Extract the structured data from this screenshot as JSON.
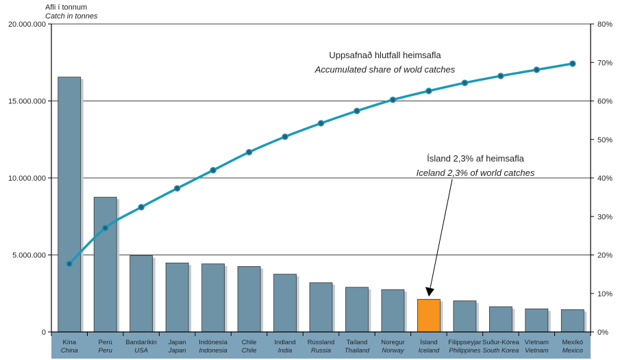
{
  "chart_data": {
    "type": "bar",
    "ylabel_is": "Afli í tonnum",
    "ylabel_en": "Catch in tonnes",
    "categories": [
      {
        "is": "Kína",
        "en": "China"
      },
      {
        "is": "Perú",
        "en": "Peru"
      },
      {
        "is": "Bandaríkin",
        "en": "USA"
      },
      {
        "is": "Japan",
        "en": "Japan"
      },
      {
        "is": "Indónesía",
        "en": "Indonesia"
      },
      {
        "is": "Chile",
        "en": "Chile"
      },
      {
        "is": "Indland",
        "en": "India"
      },
      {
        "is": "Rússland",
        "en": "Russia"
      },
      {
        "is": "Taíland",
        "en": "Thailand"
      },
      {
        "is": "Noregur",
        "en": "Norway"
      },
      {
        "is": "Ísland",
        "en": "Iceland"
      },
      {
        "is": "Filippseyjar",
        "en": "Philippines"
      },
      {
        "is": "Suður-Kórea",
        "en": "South Korea"
      },
      {
        "is": "Víetnam",
        "en": "Vietnam"
      },
      {
        "is": "Mexíkó",
        "en": "Mexico"
      }
    ],
    "values": [
      16550000,
      8750000,
      4950000,
      4480000,
      4420000,
      4250000,
      3750000,
      3200000,
      2900000,
      2750000,
      2120000,
      2020000,
      1640000,
      1500000,
      1450000
    ],
    "highlight_index": 10,
    "line_series": {
      "values": [
        17.7,
        27.0,
        32.4,
        37.3,
        42.0,
        46.7,
        50.7,
        54.2,
        57.4,
        60.3,
        62.6,
        64.7,
        66.5,
        68.1,
        69.7
      ],
      "label_is": "Uppsafnað hlutfall heimsafla",
      "label_en": "Accumulated share of wold catches"
    },
    "ylim": [
      0,
      20000000
    ],
    "y_ticks": [
      "0",
      "5.000.000",
      "10.000.000",
      "15.000.000",
      "20.000.000"
    ],
    "y2lim": [
      0,
      80
    ],
    "y2_ticks": [
      "0%",
      "10%",
      "20%",
      "30%",
      "40%",
      "50%",
      "60%",
      "70%",
      "80%"
    ],
    "annotation": {
      "text_is": "Ísland 2,3% af heimsafla",
      "text_en": "Iceland 2,3% of world catches"
    },
    "colors": {
      "bar": "#6e93a6",
      "bar_shadow": "#c3ccd3",
      "highlight": "#f7941d",
      "line": "#1a9ab8",
      "marker": "#2c5d7c",
      "label_band": "#7da3bb",
      "grid": "#000000"
    },
    "grid": true
  }
}
